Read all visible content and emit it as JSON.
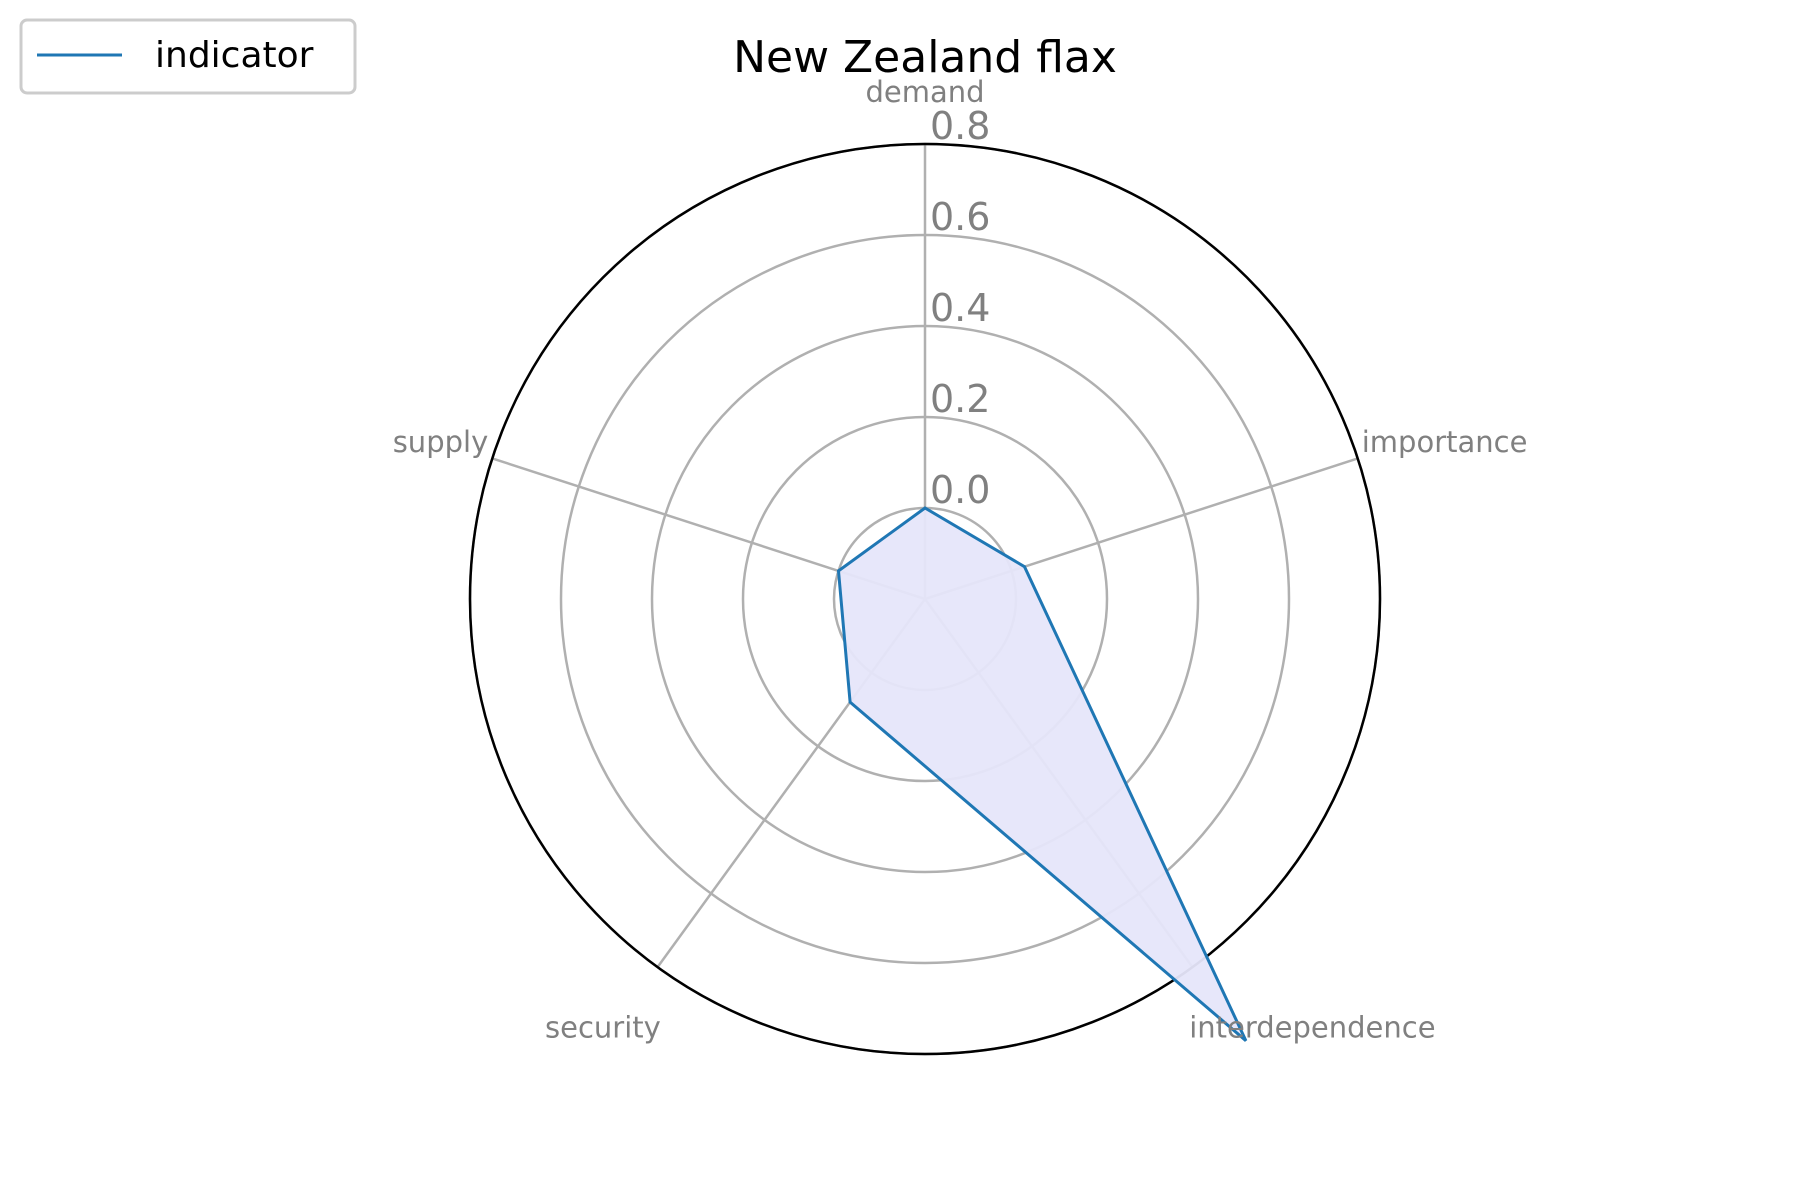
{
  "chart_data": {
    "type": "radar",
    "title": "New Zealand flax",
    "categories": [
      "demand",
      "importance",
      "interdependence",
      "security",
      "supply"
    ],
    "series": [
      {
        "name": "indicator",
        "values": [
          0.0,
          0.03,
          1.0,
          0.08,
          0.0
        ]
      }
    ],
    "rlim": [
      -0.2,
      0.8
    ],
    "r_ticks": [
      "0.0",
      "0.2",
      "0.4",
      "0.6",
      "0.8"
    ],
    "r_tick_values": [
      0.0,
      0.2,
      0.4,
      0.6,
      0.8
    ],
    "grid": true,
    "legend_position": "top-left",
    "colors": {
      "line": "#1f77b4",
      "fill": "#e6e6fa",
      "grid": "#b0b0b0",
      "frame": "#000000",
      "labels": "#808080"
    }
  }
}
